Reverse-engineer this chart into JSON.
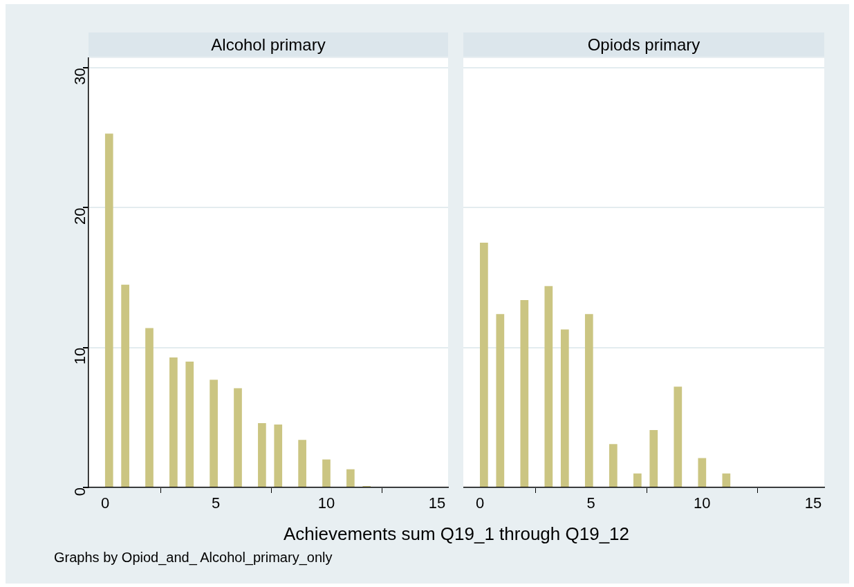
{
  "chart_data": [
    {
      "type": "bar",
      "title": "Alcohol primary",
      "xlabel": "Achievements sum Q19_1 through Q19_12",
      "annotations": [
        "Graphs by Opiod_and_ Alcohol_primary_only"
      ],
      "x": [
        0.18,
        0.91,
        2,
        3.09,
        3.82,
        4.91,
        6,
        7.09,
        7.82,
        8.91,
        10,
        11.09,
        11.82
      ],
      "values": [
        25.3,
        14.5,
        11.4,
        9.3,
        9.0,
        7.7,
        7.1,
        4.6,
        4.5,
        3.4,
        2.0,
        1.3,
        0.1
      ],
      "color": "#cbc582",
      "xlim": [
        -0.75,
        15.5
      ],
      "xticks": [
        0,
        5,
        10,
        15
      ],
      "ylim": [
        0,
        30.7
      ],
      "yticks": [
        0,
        10,
        20,
        30
      ],
      "grid": "y"
    },
    {
      "type": "bar",
      "title": "Opiods primary",
      "tick_labels": "x",
      "x": [
        0.18,
        0.91,
        2,
        3.09,
        3.82,
        4.91,
        6,
        7.09,
        7.82,
        8.91,
        10,
        11.09
      ],
      "values": [
        17.5,
        12.4,
        13.4,
        14.4,
        11.3,
        12.4,
        3.1,
        1.0,
        4.1,
        7.2,
        2.1,
        1.0
      ],
      "color": "#cbc582",
      "xlim": [
        -0.75,
        15.5
      ],
      "xticks": [
        0,
        5,
        10,
        15
      ],
      "ylim": [
        0,
        30.7
      ],
      "yticks": [
        0,
        10,
        20,
        30
      ],
      "grid": "y"
    }
  ]
}
